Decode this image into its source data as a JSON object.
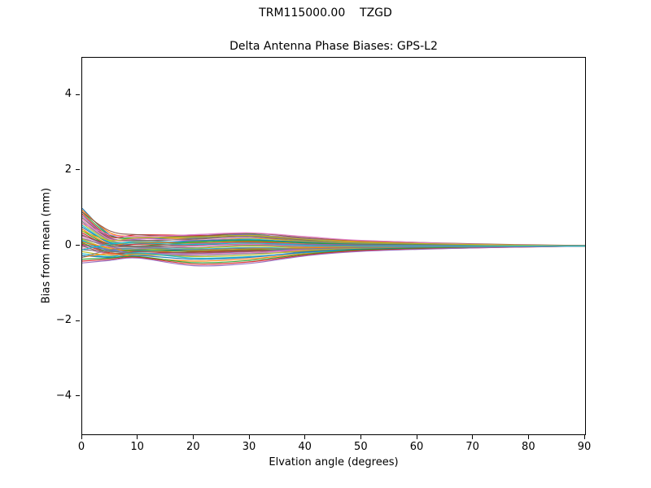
{
  "figure": {
    "suptitle": "TRM115000.00    TZGD",
    "axes_title": "Delta Antenna Phase Biases: GPS-L2",
    "xlabel": "Elvation angle (degrees)",
    "ylabel": "Bias from mean (mm)"
  },
  "chart_data": {
    "type": "line",
    "title": "TRM115000.00    TZGD",
    "subtitle": "Delta Antenna Phase Biases: GPS-L2",
    "xlabel": "Elvation angle (degrees)",
    "ylabel": "Bias from mean (mm)",
    "xlim": [
      0,
      90
    ],
    "ylim": [
      -5,
      5
    ],
    "grid": false,
    "legend": "none",
    "xticks": [
      {
        "v": 0,
        "label": "0"
      },
      {
        "v": 10,
        "label": "10"
      },
      {
        "v": 20,
        "label": "20"
      },
      {
        "v": 30,
        "label": "30"
      },
      {
        "v": 40,
        "label": "40"
      },
      {
        "v": 50,
        "label": "50"
      },
      {
        "v": 60,
        "label": "60"
      },
      {
        "v": 70,
        "label": "70"
      },
      {
        "v": 80,
        "label": "80"
      },
      {
        "v": 90,
        "label": "90"
      }
    ],
    "yticks": [
      {
        "v": -4,
        "label": "−4"
      },
      {
        "v": -2,
        "label": "−2"
      },
      {
        "v": 0,
        "label": "0"
      },
      {
        "v": 2,
        "label": "2"
      },
      {
        "v": 4,
        "label": "4"
      }
    ],
    "colors": [
      "#1f77b4",
      "#ff7f0e",
      "#2ca02c",
      "#d62728",
      "#9467bd",
      "#8c564b",
      "#e377c2",
      "#7f7f7f",
      "#bcbd22",
      "#17becf"
    ],
    "x": [
      0,
      5,
      10,
      20,
      30,
      40,
      50,
      70,
      90
    ],
    "series": [
      {
        "y": [
          1.0,
          0.3,
          0.2,
          0.22,
          0.3,
          0.18,
          0.1,
          0.04,
          0.01
        ]
      },
      {
        "y": [
          0.95,
          0.35,
          0.25,
          0.2,
          0.28,
          0.2,
          0.12,
          0.05,
          0.0
        ]
      },
      {
        "y": [
          0.9,
          0.28,
          0.22,
          0.25,
          0.32,
          0.15,
          0.08,
          0.03,
          0.01
        ]
      },
      {
        "y": [
          0.85,
          0.25,
          0.3,
          0.28,
          0.25,
          0.12,
          0.1,
          0.05,
          0.0
        ]
      },
      {
        "y": [
          0.8,
          0.22,
          0.18,
          0.3,
          0.3,
          0.2,
          0.09,
          0.02,
          0.0
        ]
      },
      {
        "y": [
          0.75,
          0.2,
          0.15,
          0.18,
          0.26,
          0.16,
          0.07,
          0.03,
          0.01
        ]
      },
      {
        "y": [
          0.7,
          0.18,
          0.2,
          0.15,
          0.22,
          0.1,
          0.05,
          0.02,
          0.0
        ]
      },
      {
        "y": [
          0.65,
          0.15,
          0.1,
          0.2,
          0.25,
          0.14,
          0.08,
          0.04,
          0.0
        ]
      },
      {
        "y": [
          0.6,
          0.12,
          0.08,
          0.12,
          0.2,
          0.12,
          0.06,
          0.02,
          0.0
        ]
      },
      {
        "y": [
          0.55,
          0.1,
          0.12,
          0.1,
          0.18,
          0.08,
          0.04,
          0.01,
          0.0
        ]
      },
      {
        "y": [
          0.5,
          0.08,
          0.05,
          0.14,
          0.16,
          0.1,
          0.05,
          0.02,
          0.0
        ]
      },
      {
        "y": [
          0.45,
          0.05,
          0.1,
          0.08,
          0.12,
          0.06,
          0.03,
          0.01,
          0.0
        ]
      },
      {
        "y": [
          0.4,
          0.02,
          0.0,
          0.1,
          0.14,
          0.08,
          0.04,
          0.02,
          0.0
        ]
      },
      {
        "y": [
          0.35,
          0.0,
          0.05,
          0.05,
          0.1,
          0.04,
          0.02,
          0.0,
          0.0
        ]
      },
      {
        "y": [
          0.3,
          -0.02,
          -0.05,
          0.06,
          0.08,
          0.05,
          0.03,
          0.01,
          0.0
        ]
      },
      {
        "y": [
          0.28,
          0.05,
          0.0,
          0.02,
          0.05,
          0.02,
          0.01,
          0.0,
          0.0
        ]
      },
      {
        "y": [
          0.25,
          -0.05,
          -0.08,
          0.0,
          0.04,
          0.0,
          0.0,
          0.0,
          0.0
        ]
      },
      {
        "y": [
          0.2,
          0.0,
          -0.02,
          -0.04,
          0.02,
          -0.02,
          -0.01,
          0.0,
          0.0
        ]
      },
      {
        "y": [
          0.18,
          -0.08,
          -0.1,
          -0.06,
          0.0,
          -0.04,
          -0.02,
          -0.01,
          0.0
        ]
      },
      {
        "y": [
          0.15,
          -0.1,
          -0.05,
          -0.08,
          -0.04,
          -0.06,
          -0.03,
          -0.01,
          0.0
        ]
      },
      {
        "y": [
          0.12,
          -0.12,
          -0.12,
          -0.1,
          -0.06,
          -0.08,
          -0.04,
          -0.02,
          0.0
        ]
      },
      {
        "y": [
          0.1,
          -0.05,
          -0.15,
          -0.12,
          -0.08,
          -0.05,
          -0.02,
          0.0,
          0.0
        ]
      },
      {
        "y": [
          0.08,
          -0.15,
          -0.1,
          -0.14,
          -0.1,
          -0.1,
          -0.05,
          -0.02,
          0.0
        ]
      },
      {
        "y": [
          0.05,
          -0.18,
          -0.2,
          -0.16,
          -0.12,
          -0.12,
          -0.06,
          -0.02,
          0.0
        ]
      },
      {
        "y": [
          0.02,
          -0.1,
          -0.18,
          -0.2,
          -0.15,
          -0.08,
          -0.04,
          -0.01,
          0.0
        ]
      },
      {
        "y": [
          0.0,
          -0.2,
          -0.15,
          -0.18,
          -0.14,
          -0.14,
          -0.07,
          -0.03,
          0.0
        ]
      },
      {
        "y": [
          -0.05,
          -0.22,
          -0.25,
          -0.22,
          -0.18,
          -0.1,
          -0.05,
          -0.02,
          0.0
        ]
      },
      {
        "y": [
          -0.1,
          -0.15,
          -0.2,
          -0.25,
          -0.2,
          -0.15,
          -0.08,
          -0.03,
          0.0
        ]
      },
      {
        "y": [
          -0.15,
          -0.25,
          -0.22,
          -0.28,
          -0.24,
          -0.12,
          -0.06,
          -0.02,
          0.0
        ]
      },
      {
        "y": [
          -0.2,
          -0.28,
          -0.18,
          -0.32,
          -0.28,
          -0.18,
          -0.1,
          -0.04,
          0.0
        ]
      },
      {
        "y": [
          -0.25,
          -0.3,
          -0.25,
          -0.35,
          -0.3,
          -0.16,
          -0.08,
          -0.03,
          0.0
        ]
      },
      {
        "y": [
          -0.3,
          -0.2,
          -0.3,
          -0.4,
          -0.34,
          -0.2,
          -0.12,
          -0.04,
          0.0
        ]
      },
      {
        "y": [
          -0.35,
          -0.32,
          -0.28,
          -0.44,
          -0.38,
          -0.22,
          -0.1,
          -0.03,
          0.0
        ]
      },
      {
        "y": [
          -0.4,
          -0.35,
          -0.3,
          -0.48,
          -0.42,
          -0.24,
          -0.12,
          -0.05,
          0.0
        ]
      },
      {
        "y": [
          -0.45,
          -0.38,
          -0.32,
          -0.52,
          -0.46,
          -0.26,
          -0.14,
          -0.05,
          0.0
        ]
      },
      {
        "y": [
          0.9,
          0.4,
          0.3,
          0.26,
          0.34,
          0.22,
          0.14,
          0.06,
          0.01
        ]
      },
      {
        "y": [
          0.6,
          0.3,
          0.25,
          0.3,
          0.35,
          0.25,
          0.15,
          0.05,
          0.0
        ]
      },
      {
        "y": [
          -0.3,
          -0.1,
          -0.05,
          -0.1,
          -0.05,
          -0.08,
          -0.04,
          -0.02,
          0.0
        ]
      },
      {
        "y": [
          0.4,
          0.15,
          0.22,
          0.24,
          0.28,
          0.18,
          0.1,
          0.04,
          0.0
        ]
      },
      {
        "y": [
          -0.1,
          0.05,
          0.08,
          0.04,
          0.08,
          0.02,
          0.0,
          0.0,
          0.0
        ]
      }
    ]
  }
}
